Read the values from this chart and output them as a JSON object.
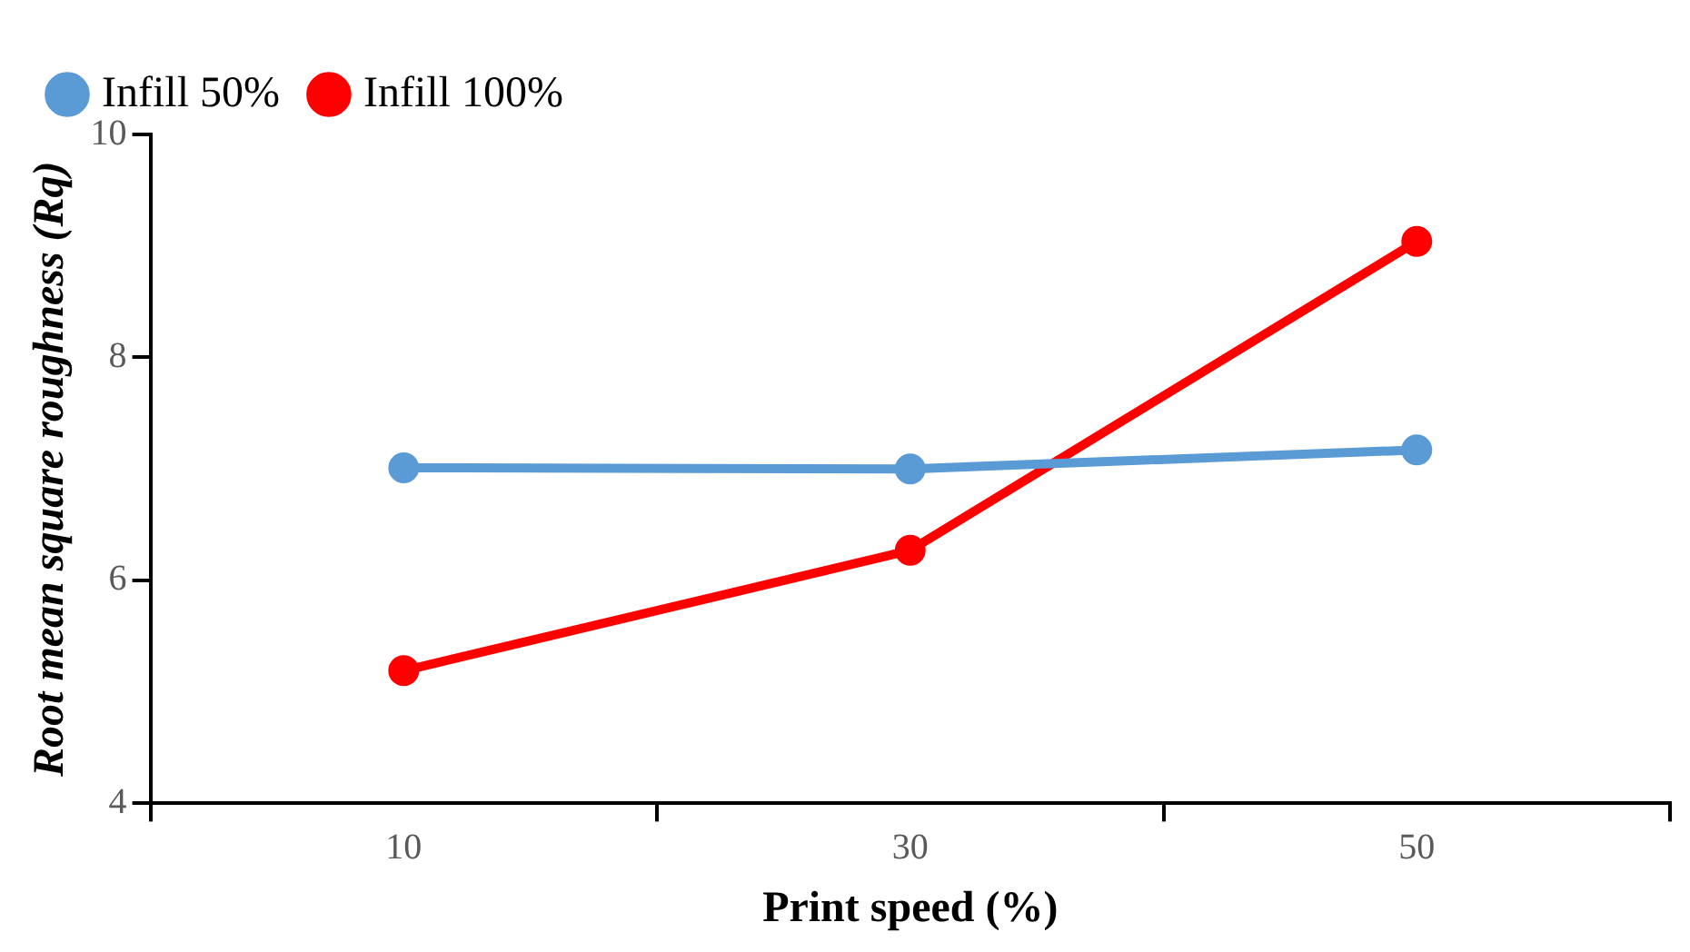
{
  "chart_data": {
    "type": "line",
    "xlabel": "Print speed (%)",
    "ylabel": "Root mean square roughness (Rq)",
    "categories": [
      "10",
      "30",
      "50"
    ],
    "series": [
      {
        "name": "Infill 50%",
        "color": "#5b9bd5",
        "values": [
          7.01,
          7.0,
          7.17
        ]
      },
      {
        "name": "Infill 100%",
        "color": "#ff0000",
        "values": [
          5.19,
          6.27,
          9.04
        ]
      }
    ],
    "ylim": [
      4,
      10
    ],
    "yticks": [
      4,
      6,
      8,
      10
    ],
    "grid": false,
    "legend": "top left",
    "marker": "circle",
    "line_style": "solid"
  }
}
